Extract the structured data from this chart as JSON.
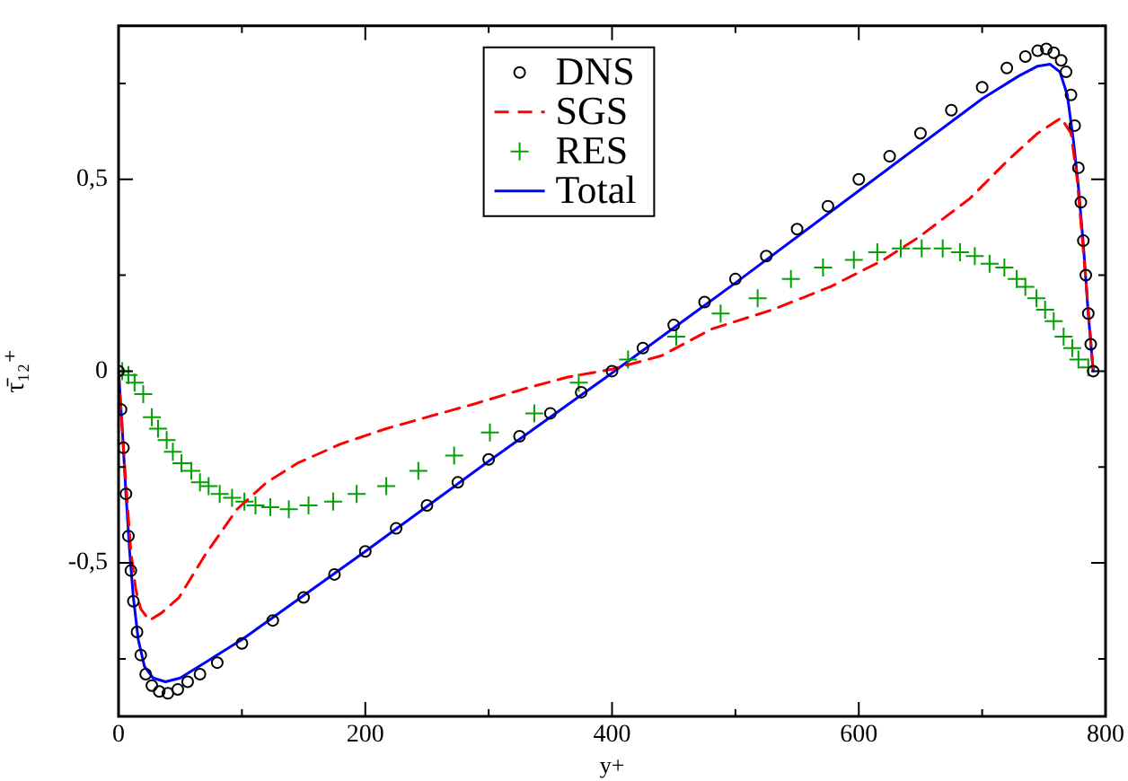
{
  "chart_data": {
    "type": "line",
    "xlabel": "y+",
    "ylabel": "τ̄₁₂⁺",
    "xlim": [
      0,
      800
    ],
    "ylim": [
      -0.9,
      0.9
    ],
    "xticks": [
      0,
      {
        "value": 100,
        "label": null
      },
      200,
      {
        "value": 300,
        "label": null
      },
      400,
      {
        "value": 500,
        "label": null
      },
      600,
      {
        "value": 700,
        "label": null
      },
      800
    ],
    "yticks": [
      {
        "value": -0.75,
        "label": null
      },
      {
        "value": -0.5,
        "label": "-0,5"
      },
      {
        "value": -0.25,
        "label": null
      },
      0,
      {
        "value": 0.25,
        "label": null
      },
      {
        "value": 0.5,
        "label": "0,5"
      },
      {
        "value": 0.75,
        "label": null
      }
    ],
    "grid": false,
    "legend": "top",
    "series": [
      {
        "name": "DNS",
        "type": "scatter",
        "marker": "circle",
        "color": "#000000",
        "x": [
          0,
          2,
          4,
          6,
          8,
          10,
          12,
          15,
          18,
          22,
          27,
          33,
          40,
          48,
          56,
          66,
          80,
          100,
          125,
          150,
          175,
          200,
          225,
          250,
          275,
          300,
          325,
          350,
          375,
          400,
          425,
          450,
          475,
          500,
          525,
          550,
          575,
          600,
          625,
          650,
          675,
          700,
          720,
          735,
          745,
          752,
          758,
          764,
          768,
          772,
          775,
          778,
          780,
          782,
          784,
          786,
          788,
          790
        ],
        "values": [
          0,
          -0.1,
          -0.2,
          -0.32,
          -0.43,
          -0.52,
          -0.6,
          -0.68,
          -0.74,
          -0.79,
          -0.82,
          -0.835,
          -0.84,
          -0.83,
          -0.81,
          -0.79,
          -0.76,
          -0.71,
          -0.65,
          -0.59,
          -0.53,
          -0.47,
          -0.41,
          -0.35,
          -0.29,
          -0.23,
          -0.17,
          -0.11,
          -0.055,
          0,
          0.06,
          0.12,
          0.18,
          0.24,
          0.3,
          0.37,
          0.43,
          0.5,
          0.56,
          0.62,
          0.68,
          0.74,
          0.79,
          0.82,
          0.835,
          0.84,
          0.83,
          0.81,
          0.78,
          0.72,
          0.64,
          0.53,
          0.44,
          0.34,
          0.25,
          0.15,
          0.07,
          0
        ]
      },
      {
        "name": "SGS",
        "line_style": "dashed",
        "color": "#ff0000",
        "x": [
          0,
          5,
          10,
          14,
          18,
          25,
          35,
          49,
          70,
          96,
          120,
          145,
          180,
          217,
          250,
          289,
          330,
          365,
          400,
          440,
          481,
          530,
          577,
          620,
          649,
          690,
          721,
          745,
          764,
          772,
          777,
          781,
          785,
          788,
          790
        ],
        "values": [
          0,
          -0.25,
          -0.47,
          -0.57,
          -0.62,
          -0.65,
          -0.63,
          -0.59,
          -0.48,
          -0.36,
          -0.29,
          -0.24,
          -0.19,
          -0.15,
          -0.12,
          -0.085,
          -0.045,
          -0.015,
          0.005,
          0.04,
          0.11,
          0.16,
          0.22,
          0.29,
          0.35,
          0.45,
          0.55,
          0.62,
          0.66,
          0.62,
          0.5,
          0.35,
          0.2,
          0.08,
          0
        ]
      },
      {
        "name": "RES",
        "type": "scatter",
        "marker": "cross",
        "color": "#00a000",
        "x": [
          3,
          8,
          13,
          20,
          27,
          32,
          39,
          44,
          51,
          59,
          66,
          73,
          82,
          92,
          102,
          111,
          123,
          138,
          154,
          174,
          193,
          217,
          243,
          272,
          301,
          337,
          373,
          413,
          452,
          488,
          518,
          545,
          571,
          596,
          615,
          634,
          651,
          668,
          682,
          694,
          706,
          718,
          728,
          735,
          744,
          751,
          758,
          766,
          773,
          778,
          786
        ],
        "values": [
          0,
          -0.01,
          -0.03,
          -0.06,
          -0.12,
          -0.15,
          -0.18,
          -0.21,
          -0.24,
          -0.26,
          -0.29,
          -0.3,
          -0.32,
          -0.33,
          -0.34,
          -0.35,
          -0.355,
          -0.36,
          -0.35,
          -0.34,
          -0.32,
          -0.3,
          -0.26,
          -0.22,
          -0.16,
          -0.11,
          -0.03,
          0.03,
          0.09,
          0.15,
          0.19,
          0.24,
          0.27,
          0.29,
          0.31,
          0.32,
          0.32,
          0.32,
          0.31,
          0.3,
          0.28,
          0.27,
          0.24,
          0.22,
          0.19,
          0.16,
          0.13,
          0.09,
          0.06,
          0.03,
          0.01
        ]
      },
      {
        "name": "Total",
        "line_style": "solid",
        "color": "#0000ff",
        "x": [
          0,
          3,
          6,
          9,
          12,
          16,
          21,
          28,
          38,
          50,
          70,
          100,
          200,
          300,
          400,
          500,
          600,
          700,
          730,
          745,
          755,
          763,
          769,
          774,
          778,
          782,
          786,
          790
        ],
        "values": [
          0,
          -0.15,
          -0.32,
          -0.47,
          -0.59,
          -0.7,
          -0.77,
          -0.8,
          -0.81,
          -0.8,
          -0.76,
          -0.7,
          -0.47,
          -0.235,
          -0.005,
          0.23,
          0.47,
          0.71,
          0.77,
          0.795,
          0.8,
          0.78,
          0.72,
          0.6,
          0.48,
          0.33,
          0.15,
          0
        ]
      }
    ]
  }
}
